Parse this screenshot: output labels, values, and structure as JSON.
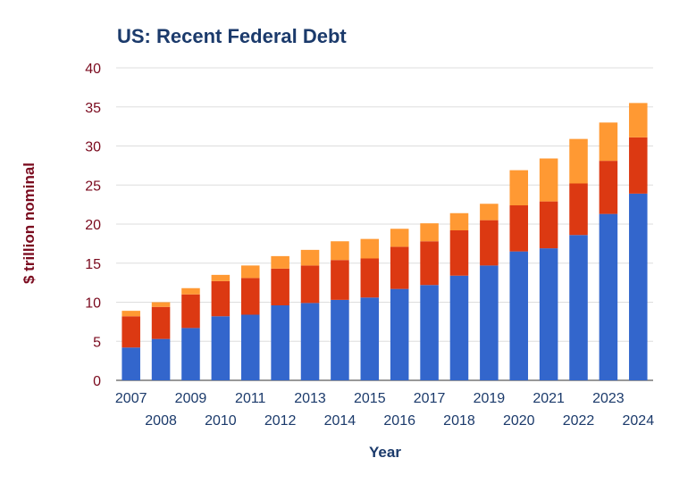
{
  "chart_data": {
    "type": "bar",
    "stacked": true,
    "title": "US: Recent Federal Debt",
    "xlabel": "Year",
    "ylabel": "$ trillion nominal",
    "ylim": [
      0,
      40
    ],
    "yticks": [
      "0",
      "5",
      "10",
      "15",
      "20",
      "25",
      "30",
      "35",
      "40"
    ],
    "grid": true,
    "legend": "none",
    "categories": [
      "2007",
      "2008",
      "2009",
      "2010",
      "2011",
      "2012",
      "2013",
      "2014",
      "2015",
      "2016",
      "2017",
      "2018",
      "2019",
      "2020",
      "2021",
      "2022",
      "2023",
      "2024"
    ],
    "series": [
      {
        "color": "#3366cc",
        "values": [
          4.2,
          5.3,
          6.7,
          8.2,
          8.4,
          9.6,
          9.9,
          10.3,
          10.6,
          11.7,
          12.2,
          13.4,
          14.7,
          16.5,
          16.9,
          18.6,
          21.3,
          23.9
        ]
      },
      {
        "color": "#dc3912",
        "values": [
          4.0,
          4.1,
          4.3,
          4.5,
          4.7,
          4.7,
          4.8,
          5.1,
          5.0,
          5.4,
          5.6,
          5.8,
          5.8,
          5.9,
          6.0,
          6.6,
          6.8,
          7.2
        ]
      },
      {
        "color": "#ff9933",
        "values": [
          0.7,
          0.6,
          0.8,
          0.8,
          1.6,
          1.6,
          2.0,
          2.4,
          2.5,
          2.3,
          2.3,
          2.2,
          2.1,
          4.5,
          5.5,
          5.7,
          4.9,
          4.4
        ]
      }
    ]
  },
  "colors": {
    "title": "#1b3a6b",
    "ytick": "#7a0a1e",
    "xtick": "#1b3a6b",
    "grid": "#dddddd"
  }
}
